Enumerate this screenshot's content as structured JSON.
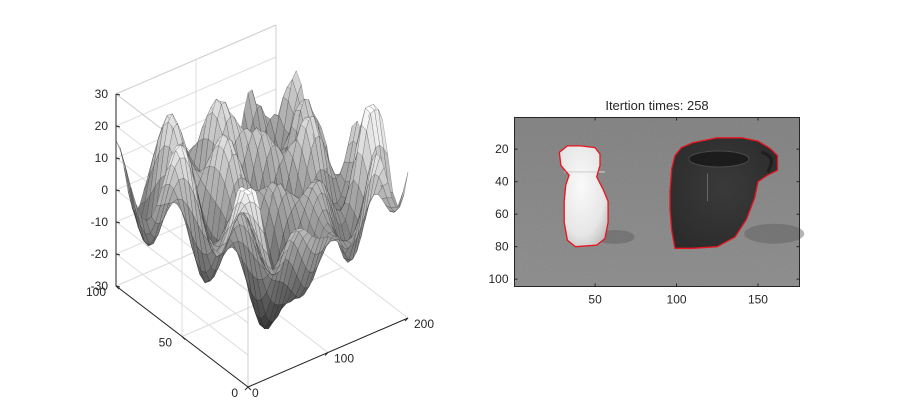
{
  "chart_data": [
    {
      "type": "surface",
      "title": "",
      "xlabel": "",
      "ylabel": "",
      "zlabel": "",
      "xlim": [
        0,
        200
      ],
      "ylim": [
        0,
        100
      ],
      "zlim": [
        -30,
        30
      ],
      "x_ticks": [
        "0",
        "100",
        "200"
      ],
      "y_ticks": [
        "0",
        "50",
        "100"
      ],
      "z_ticks": [
        "30",
        "20",
        "10",
        "0",
        "-10",
        "-20",
        "-30"
      ],
      "colormap": "gray",
      "grid": true,
      "box": true
    },
    {
      "type": "image",
      "title": "Itertion times: 258",
      "xlabel": "",
      "ylabel": "",
      "xlim": [
        0.5,
        175.5
      ],
      "ylim": [
        0.5,
        104.5
      ],
      "x_ticks": [
        "50",
        "100",
        "150"
      ],
      "y_ticks": [
        "20",
        "40",
        "60",
        "80",
        "100"
      ],
      "colormap": "gray",
      "contour_color": "#e8141e",
      "objects": [
        {
          "name": "bottle",
          "contour": [
            [
              41,
              18
            ],
            [
              50,
              19
            ],
            [
              53,
              23
            ],
            [
              53,
              30
            ],
            [
              51,
              37
            ],
            [
              55,
              45
            ],
            [
              58,
              52
            ],
            [
              58,
              65
            ],
            [
              56,
              75
            ],
            [
              51,
              79
            ],
            [
              38,
              80
            ],
            [
              33,
              76
            ],
            [
              31,
              65
            ],
            [
              31,
              52
            ],
            [
              32,
              42
            ],
            [
              34,
              36
            ],
            [
              29,
              30
            ],
            [
              28,
              22
            ],
            [
              33,
              18
            ]
          ]
        },
        {
          "name": "cup",
          "contour": [
            [
              110,
              16
            ],
            [
              125,
              13
            ],
            [
              140,
              13
            ],
            [
              150,
              15
            ],
            [
              155,
              18
            ],
            [
              158,
              20
            ],
            [
              162,
              24
            ],
            [
              162,
              33
            ],
            [
              156,
              36
            ],
            [
              150,
              40
            ],
            [
              148,
              50
            ],
            [
              143,
              63
            ],
            [
              136,
              74
            ],
            [
              125,
              80
            ],
            [
              110,
              81
            ],
            [
              99,
              81
            ],
            [
              97,
              70
            ],
            [
              96,
              57
            ],
            [
              96,
              46
            ],
            [
              97,
              32
            ],
            [
              99,
              24
            ],
            [
              103,
              19
            ]
          ]
        }
      ]
    }
  ]
}
